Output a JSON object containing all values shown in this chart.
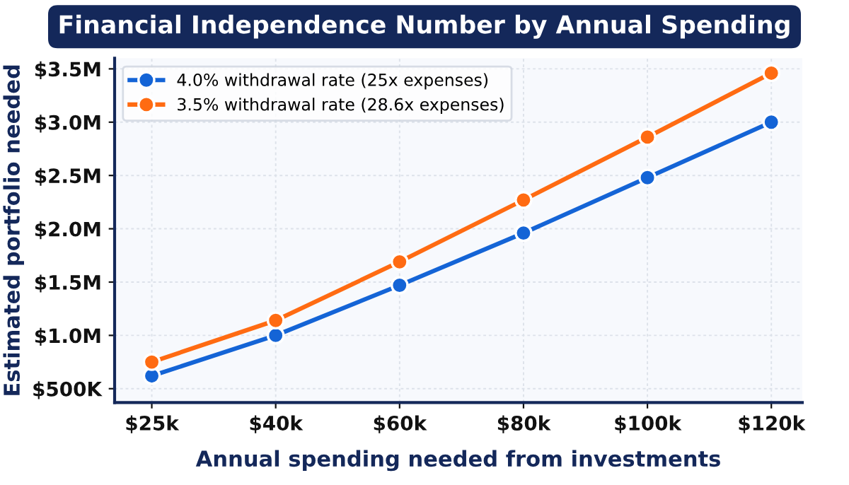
{
  "chart_data": {
    "type": "line",
    "title": "Financial Independence Number by Annual Spending",
    "xlabel": "Annual spending needed from investments",
    "ylabel": "Estimated portfolio needed",
    "categories": [
      "$25k",
      "$40k",
      "$60k",
      "$80k",
      "$100k",
      "$120k"
    ],
    "series": [
      {
        "name": "4.0% withdrawal rate (25x expenses)",
        "color": "#1464d6",
        "values": [
          620000,
          1000000,
          1470000,
          1960000,
          2480000,
          3000000
        ]
      },
      {
        "name": "3.5% withdrawal rate (28.6x expenses)",
        "color": "#ff6b12",
        "values": [
          750000,
          1140000,
          1690000,
          2270000,
          2860000,
          3460000
        ]
      }
    ],
    "ylim": [
      370000,
      3600000
    ],
    "yticks": [
      {
        "value": 500000,
        "label": "$500K"
      },
      {
        "value": 1000000,
        "label": "$1.0M"
      },
      {
        "value": 1500000,
        "label": "$1.5M"
      },
      {
        "value": 2000000,
        "label": "$2.0M"
      },
      {
        "value": 2500000,
        "label": "$2.5M"
      },
      {
        "value": 3000000,
        "label": "$3.0M"
      },
      {
        "value": 3500000,
        "label": "$3.5M"
      }
    ],
    "grid": true,
    "legend": "top left",
    "marker": "circle",
    "line_style": "solid"
  }
}
